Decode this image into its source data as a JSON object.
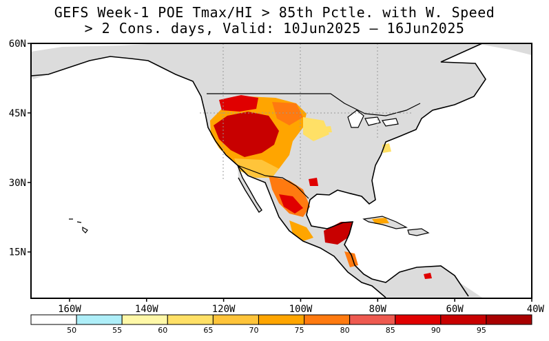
{
  "title": {
    "line1": "GEFS Week-1 POE Tmax/HI > 85th Pctle. with W. Speed",
    "line2": "> 2 Cons. days, Valid: 10Jun2025 – 16Jun2025"
  },
  "map": {
    "lon_range": [
      -170,
      -40
    ],
    "lat_range": [
      5,
      60
    ],
    "lat_ticks": [
      {
        "value": 60,
        "label": "60N"
      },
      {
        "value": 45,
        "label": "45N"
      },
      {
        "value": 30,
        "label": "30N"
      },
      {
        "value": 15,
        "label": "15N"
      }
    ],
    "lon_ticks": [
      {
        "value": -160,
        "label": "160W"
      },
      {
        "value": -140,
        "label": "140W"
      },
      {
        "value": -120,
        "label": "120W"
      },
      {
        "value": -100,
        "label": "100W"
      },
      {
        "value": -80,
        "label": "80W"
      },
      {
        "value": -60,
        "label": "60W"
      },
      {
        "value": -40,
        "label": "40W"
      }
    ],
    "colors": {
      "ocean": "#ffffff",
      "land_no_data": "#dcdcdc",
      "coast": "#000000"
    }
  },
  "colorbar": {
    "bins": [
      {
        "color": "#ffffff"
      },
      {
        "color": "#aeeef8"
      },
      {
        "color": "#fff8a8"
      },
      {
        "color": "#ffe066"
      },
      {
        "color": "#ffc43a"
      },
      {
        "color": "#ffa500"
      },
      {
        "color": "#ff7a10"
      },
      {
        "color": "#ee5a50"
      },
      {
        "color": "#e00000"
      },
      {
        "color": "#c80000"
      },
      {
        "color": "#a80000"
      }
    ],
    "labels": [
      "50",
      "55",
      "60",
      "65",
      "70",
      "75",
      "80",
      "85",
      "90",
      "95"
    ]
  }
}
